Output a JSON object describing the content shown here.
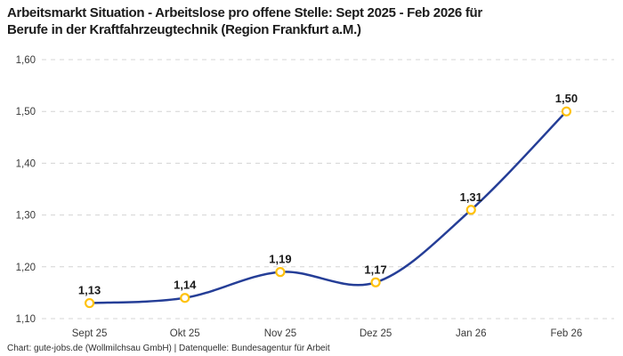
{
  "header": {
    "title": "Arbeitsmarkt Situation - Arbeitslose pro offene Stelle: Sept 2025 - Feb 2026 für\nBerufe in der Kraftfahrzeugtechnik (Region Frankfurt a.M.)"
  },
  "chart_data": {
    "type": "line",
    "title": "Arbeitsmarkt Situation - Arbeitslose pro offene Stelle: Sept 2025 - Feb 2026 für Berufe in der Kraftfahrzeugtechnik (Region Frankfurt a.M.)",
    "categories": [
      "Sept 25",
      "Okt 25",
      "Nov 25",
      "Dez 25",
      "Jan 26",
      "Feb 26"
    ],
    "values": [
      1.13,
      1.14,
      1.19,
      1.17,
      1.31,
      1.5
    ],
    "value_labels": [
      "1,13",
      "1,14",
      "1,19",
      "1,17",
      "1,31",
      "1,50"
    ],
    "y_ticks": [
      1.1,
      1.2,
      1.3,
      1.4,
      1.5,
      1.6
    ],
    "y_tick_labels": [
      "1,10",
      "1,20",
      "1,30",
      "1,40",
      "1,50",
      "1,60"
    ],
    "ylim": [
      1.1,
      1.6
    ],
    "xlabel": "",
    "ylabel": "",
    "grid": "horizontal-dashed",
    "legend": "none",
    "line_smoothing": "spline",
    "marker_style": "open-circle"
  },
  "colors": {
    "line": "#253E97",
    "marker_stroke": "#FFC20E",
    "marker_fill": "#FFFFFF",
    "grid": "#D4D4D4",
    "axis_text": "#3A3A3A",
    "data_label_text": "#191919",
    "title_text": "#1B1B1B",
    "background": "#FFFFFF"
  },
  "footer": {
    "attribution": "Chart: gute-jobs.de (Wollmilchsau GmbH) | Datenquelle: Bundesagentur für Arbeit"
  }
}
